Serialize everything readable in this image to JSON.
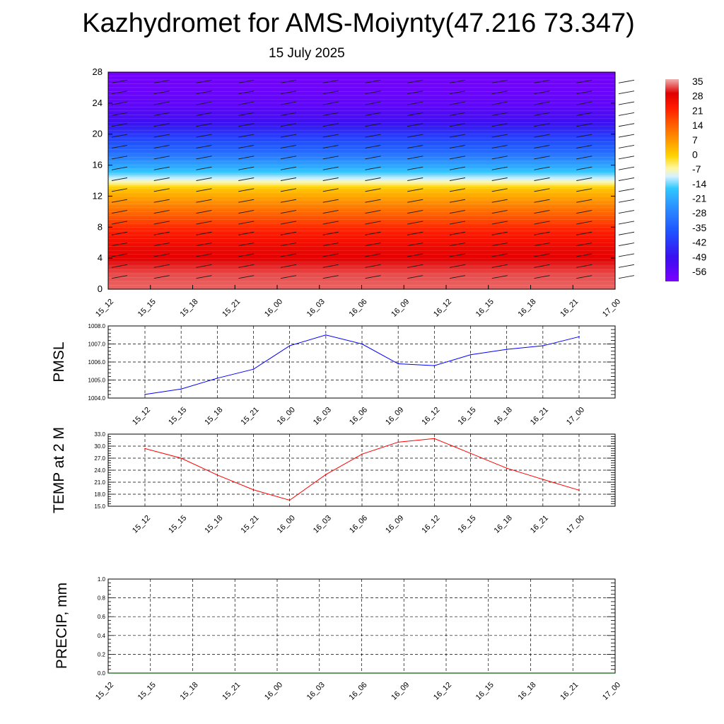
{
  "title": "Kazhydromet for AMS-Moiynty(47.216 73.347)",
  "subtitle": "15 July 2025",
  "chart_data": [
    {
      "type": "heatmap",
      "name": "temperature-wind-profile",
      "x": [
        "15_12",
        "15_15",
        "15_18",
        "15_21",
        "16_00",
        "16_03",
        "16_06",
        "16_09",
        "16_12",
        "16_15",
        "16_18",
        "16_21",
        "17_00"
      ],
      "yticks": [
        0,
        4,
        8,
        12,
        16,
        20,
        24,
        28
      ],
      "ylim": [
        0,
        28
      ],
      "colorbar": {
        "labels": [
          "35",
          "28",
          "21",
          "14",
          "7",
          "0",
          "-7",
          "-14",
          "-21",
          "-28",
          "-35",
          "-42",
          "-49",
          "-56"
        ],
        "range": [
          -60,
          37
        ]
      },
      "profile_levels": [
        0,
        2,
        4,
        6,
        8,
        10,
        12,
        13,
        14,
        16,
        18,
        20,
        22,
        24,
        26,
        28
      ],
      "profile_values": [
        34,
        33,
        30,
        26,
        20,
        12,
        4,
        0,
        -10,
        -24,
        -36,
        -44,
        -52,
        -56,
        -58,
        -59
      ],
      "wind_barbs": true
    },
    {
      "type": "line",
      "name": "pmsl",
      "ylabel": "PMSL",
      "x": [
        "15_12",
        "15_15",
        "15_18",
        "15_21",
        "16_00",
        "16_03",
        "16_06",
        "16_09",
        "16_12",
        "16_15",
        "16_18",
        "16_21",
        "17_00"
      ],
      "values": [
        1004.2,
        1004.5,
        1005.1,
        1005.6,
        1006.9,
        1007.5,
        1007.0,
        1005.9,
        1005.8,
        1006.4,
        1006.7,
        1006.9,
        1007.4
      ],
      "yticks": [
        "1004.0",
        "1005.0",
        "1006.0",
        "1007.0",
        "1008.0"
      ],
      "ylim": [
        1004.0,
        1008.0
      ],
      "color": "#0000ff"
    },
    {
      "type": "line",
      "name": "temp2m",
      "ylabel": "TEMP at 2 M",
      "x": [
        "15_12",
        "15_15",
        "15_18",
        "15_21",
        "16_00",
        "16_03",
        "16_06",
        "16_09",
        "16_12",
        "16_15",
        "16_18",
        "16_21",
        "17_00"
      ],
      "values": [
        29.4,
        27.0,
        22.8,
        19.1,
        16.5,
        22.9,
        28.0,
        31.0,
        31.9,
        28.2,
        24.5,
        21.7,
        19.0
      ],
      "yticks": [
        "15.0",
        "18.0",
        "21.0",
        "24.0",
        "27.0",
        "30.0",
        "33.0"
      ],
      "ylim": [
        15.0,
        33.0
      ],
      "color": "#ff0000"
    },
    {
      "type": "bar",
      "name": "precip",
      "ylabel": "PRECIP, mm",
      "x": [
        "15_12",
        "15_15",
        "15_18",
        "15_21",
        "16_00",
        "16_03",
        "16_06",
        "16_09",
        "16_12",
        "16_15",
        "16_18",
        "16_21",
        "17_00"
      ],
      "values": [
        0,
        0,
        0,
        0,
        0,
        0,
        0,
        0,
        0,
        0,
        0,
        0,
        0
      ],
      "yticks": [
        "0.0",
        "0.2",
        "0.4",
        "0.6",
        "0.8",
        "1.0"
      ],
      "ylim": [
        0.0,
        1.0
      ],
      "color": "#006400"
    }
  ]
}
